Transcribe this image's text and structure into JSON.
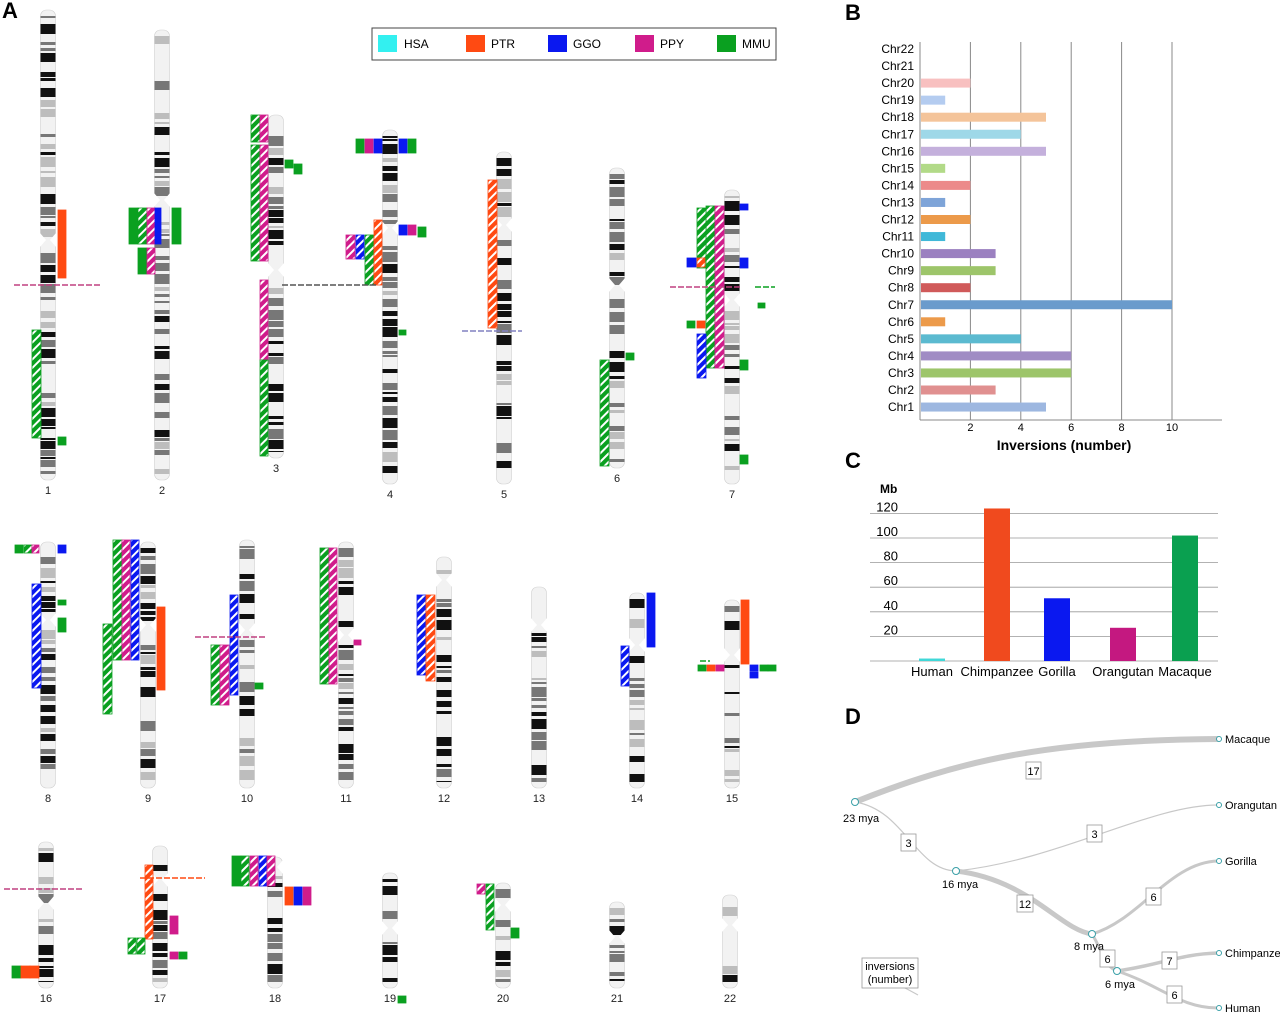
{
  "panel_labels": [
    "A",
    "B",
    "C",
    "D"
  ],
  "legend": [
    {
      "label": "HSA",
      "color": "#33f0f0"
    },
    {
      "label": "PTR",
      "color": "#ff4a12"
    },
    {
      "label": "GGO",
      "color": "#0a18f0"
    },
    {
      "label": "PPY",
      "color": "#d01c8b"
    },
    {
      "label": "MMU",
      "color": "#0aa020"
    }
  ],
  "chromosome_labels": [
    "1",
    "2",
    "3",
    "4",
    "5",
    "6",
    "7",
    "8",
    "9",
    "10",
    "11",
    "12",
    "13",
    "14",
    "15",
    "16",
    "17",
    "18",
    "19",
    "20",
    "21",
    "22"
  ],
  "chart_data": [
    {
      "type": "bar",
      "orientation": "horizontal",
      "categories": [
        "Chr1",
        "Chr2",
        "Chr3",
        "Chr4",
        "Chr5",
        "Chr6",
        "Chr7",
        "Chr8",
        "Chr9",
        "Chr10",
        "Chr11",
        "Chr12",
        "Chr13",
        "Chr14",
        "Chr15",
        "Chr16",
        "Chr17",
        "Chr18",
        "Chr19",
        "Chr20",
        "Chr21",
        "Chr22"
      ],
      "values": [
        5,
        3,
        6,
        6,
        4,
        1,
        10,
        2,
        3,
        3,
        1,
        2,
        1,
        2,
        1,
        5,
        4,
        5,
        1,
        2,
        0,
        0
      ],
      "colors": [
        "#9db7e0",
        "#e09090",
        "#9dc56a",
        "#a08cc4",
        "#5bbad0",
        "#ec9a4a",
        "#6a9bcc",
        "#d05a5a",
        "#9dc56a",
        "#9b80c0",
        "#40b8d8",
        "#ec9a4a",
        "#7ea4d8",
        "#ec8a8a",
        "#b2da88",
        "#c4b0dc",
        "#9ed8e8",
        "#f4c49a",
        "#b4ccf0",
        "#f8c0c0",
        "#cccccc",
        "#cccccc"
      ],
      "xlabel": "Inversions (number)",
      "xticks": [
        2,
        4,
        6,
        8,
        10
      ],
      "xlim": [
        0,
        12
      ],
      "grid": true
    },
    {
      "type": "bar",
      "categories": [
        "Human",
        "Chimpanzee",
        "Gorilla",
        "Orangutan",
        "Macaque"
      ],
      "values": [
        2,
        124,
        51,
        27,
        102
      ],
      "colors": [
        "#40d8d8",
        "#f04a1e",
        "#0a18f0",
        "#c41880",
        "#0aa050"
      ],
      "ylabel": "Mb",
      "yticks": [
        20,
        40,
        60,
        80,
        100,
        120
      ],
      "ylim": [
        0,
        128
      ],
      "grid": true
    }
  ],
  "tree": {
    "leaves": [
      "Macaque",
      "Orangutan",
      "Gorilla",
      "Chimpanzee",
      "Human"
    ],
    "nodes": [
      "23 mya",
      "16 mya",
      "8 mya",
      "6 mya"
    ],
    "branch_values": [
      "17",
      "3",
      "3",
      "12",
      "6",
      "6",
      "7",
      "6"
    ],
    "legend_label": "inversions\n(number)"
  }
}
